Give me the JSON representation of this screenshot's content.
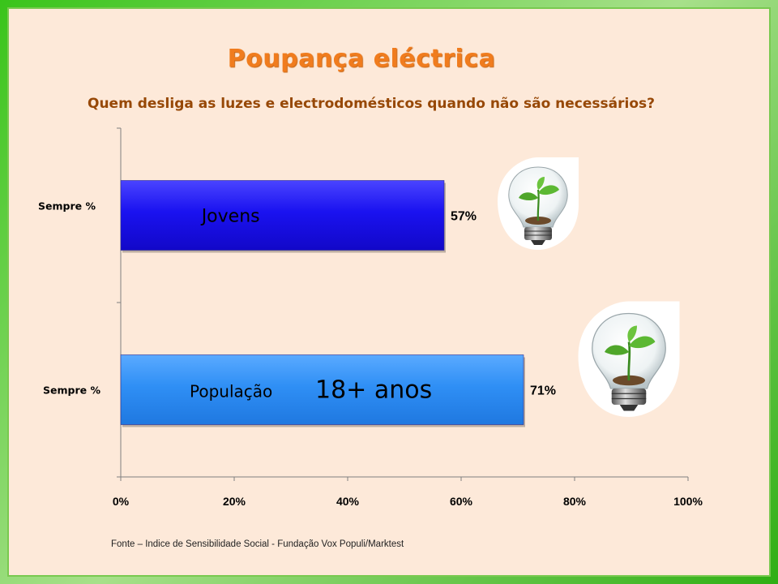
{
  "chart_data": {
    "type": "bar",
    "orientation": "horizontal",
    "title": "Poupança eléctrica",
    "subtitle": "Quem desliga as luzes e electrodomésticos quando não são necessários?",
    "categories": [
      "Sempre %",
      "Sempre %"
    ],
    "series": [
      {
        "values": [
          57,
          71
        ],
        "value_labels": [
          "57%",
          "71%"
        ],
        "bar_labels": [
          [
            "Jovens"
          ],
          [
            "População",
            "18+ anos"
          ]
        ],
        "colors": [
          "#1a12f0",
          "#2f8ff5"
        ]
      }
    ],
    "xlim": [
      0,
      100
    ],
    "x_ticks": [
      "0%",
      "20%",
      "40%",
      "60%",
      "80%",
      "100%"
    ],
    "grid": false,
    "legend": "none"
  },
  "source_text": "Fonte – Indice de Sensibilidade Social  - Fundação Vox Populi/Marktest",
  "colors": {
    "title": "#f07c1e",
    "subtitle": "#974806",
    "background": "#fde9d9",
    "frame": "#39c41a"
  },
  "icons": [
    "lightbulb-plant-icon",
    "lightbulb-plant-icon"
  ]
}
